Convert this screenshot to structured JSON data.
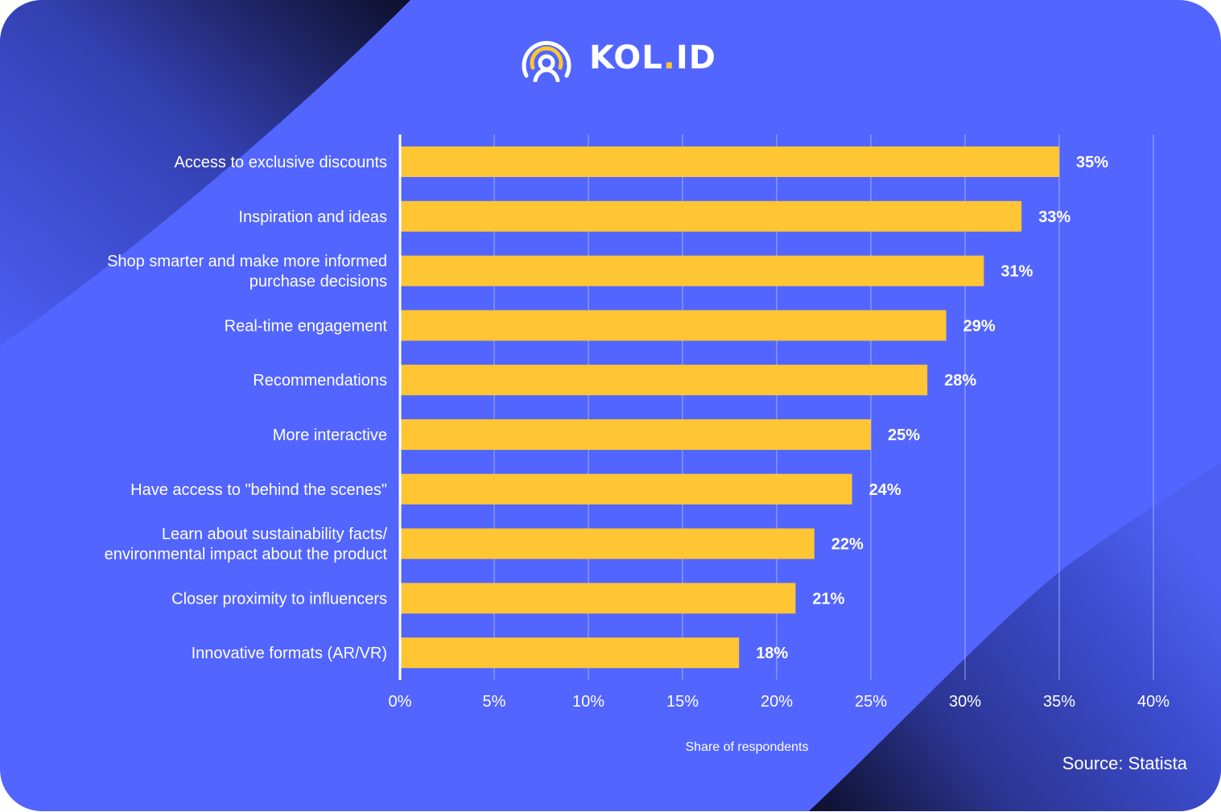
{
  "brand": {
    "name_main": "KOL",
    "name_dot": ".",
    "name_suffix": "ID",
    "icon": "broadcast-person-icon"
  },
  "colors": {
    "background": "#5265FF",
    "bar": "#FFC533",
    "accent_dark": "#0D0F2A",
    "text": "#FFFFFF",
    "grid": "#B8C0FF"
  },
  "source": "Source: Statista",
  "chart_data": {
    "type": "bar",
    "orientation": "horizontal",
    "title": "",
    "xlabel": "Share of respondents",
    "ylabel": "",
    "xlim": [
      0,
      40
    ],
    "x_ticks": [
      0,
      5,
      10,
      15,
      20,
      25,
      30,
      35,
      40
    ],
    "x_tick_labels": [
      "0%",
      "5%",
      "10%",
      "15%",
      "20%",
      "25%",
      "30%",
      "35%",
      "40%"
    ],
    "grid": "vertical",
    "legend": "none",
    "categories": [
      [
        "Access to exclusive discounts"
      ],
      [
        "Inspiration and ideas"
      ],
      [
        "Shop smarter and make more informed",
        "purchase decisions"
      ],
      [
        "Real-time engagement"
      ],
      [
        "Recommendations"
      ],
      [
        "More interactive"
      ],
      [
        "Have access to \"behind the scenes\""
      ],
      [
        "Learn about sustainability facts/",
        "environmental impact about the product"
      ],
      [
        "Closer proximity to influencers"
      ],
      [
        "Innovative formats (AR/VR)"
      ]
    ],
    "values": [
      35,
      33,
      31,
      29,
      28,
      25,
      24,
      22,
      21,
      18
    ],
    "value_labels": [
      "35%",
      "33%",
      "31%",
      "29%",
      "28%",
      "25%",
      "24%",
      "22%",
      "21%",
      "18%"
    ]
  }
}
